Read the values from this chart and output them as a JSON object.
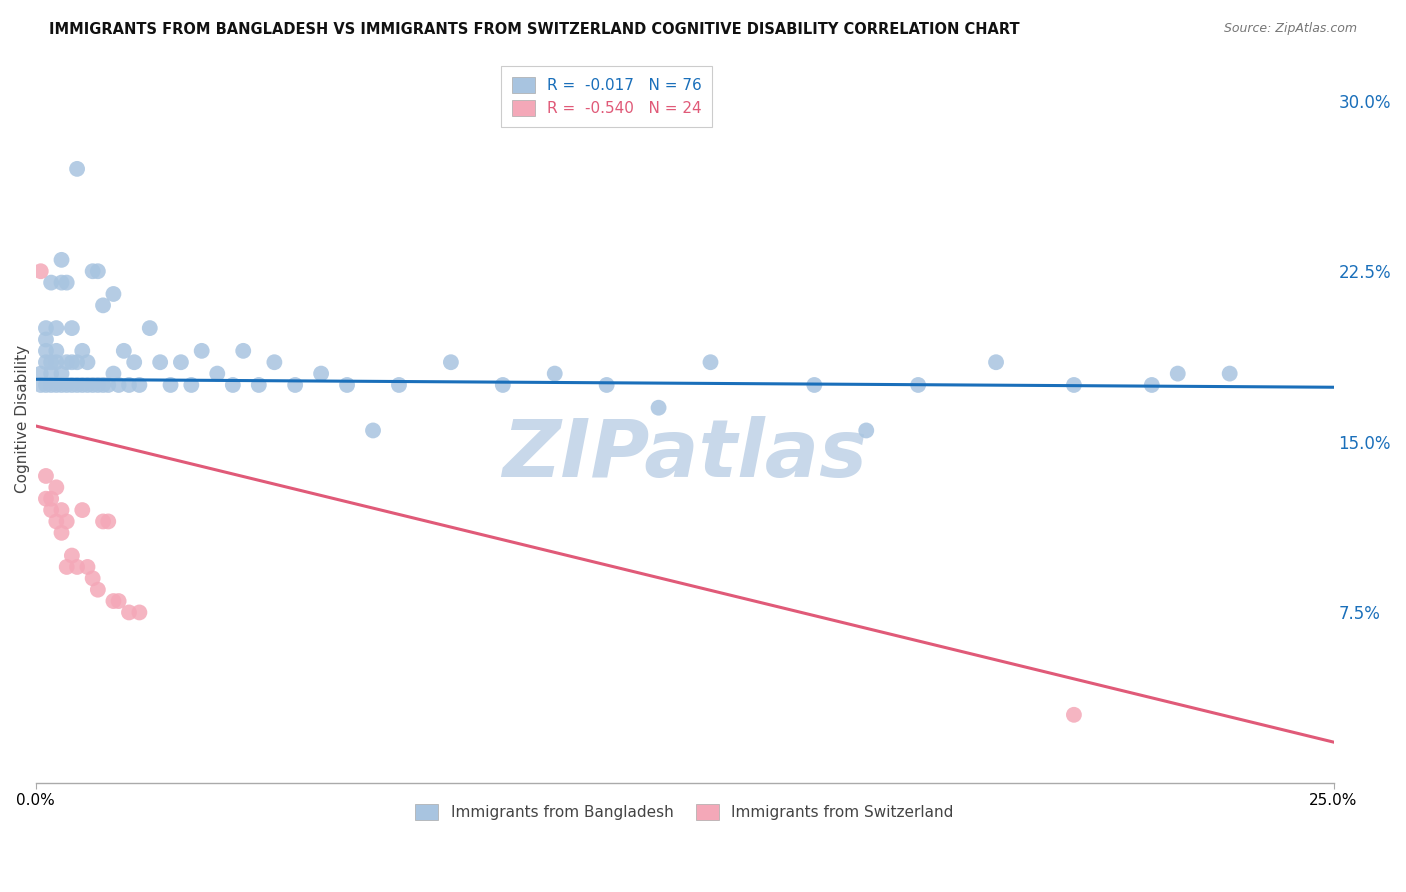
{
  "title": "IMMIGRANTS FROM BANGLADESH VS IMMIGRANTS FROM SWITZERLAND COGNITIVE DISABILITY CORRELATION CHART",
  "source": "Source: ZipAtlas.com",
  "ylabel": "Cognitive Disability",
  "yticks": [
    0.0,
    0.075,
    0.15,
    0.225,
    0.3
  ],
  "ytick_labels": [
    "",
    "7.5%",
    "15.0%",
    "22.5%",
    "30.0%"
  ],
  "xlim": [
    0.0,
    0.25
  ],
  "ylim": [
    0.0,
    0.32
  ],
  "legend_r1": "R =  -0.017",
  "legend_n1": "N = 76",
  "legend_r2": "R =  -0.540",
  "legend_n2": "N = 24",
  "label1": "Immigrants from Bangladesh",
  "label2": "Immigrants from Switzerland",
  "color1": "#a8c4e0",
  "color2": "#f4a8b8",
  "line_color1": "#1a6fba",
  "line_color2": "#e05a78",
  "watermark": "ZIPatlas",
  "watermark_color": "#c8d8ea",
  "bangladesh_x": [
    0.001,
    0.001,
    0.002,
    0.002,
    0.002,
    0.002,
    0.002,
    0.003,
    0.003,
    0.003,
    0.003,
    0.004,
    0.004,
    0.004,
    0.004,
    0.005,
    0.005,
    0.005,
    0.005,
    0.006,
    0.006,
    0.006,
    0.007,
    0.007,
    0.007,
    0.008,
    0.008,
    0.008,
    0.009,
    0.009,
    0.01,
    0.01,
    0.011,
    0.011,
    0.012,
    0.012,
    0.013,
    0.013,
    0.014,
    0.015,
    0.015,
    0.016,
    0.017,
    0.018,
    0.019,
    0.02,
    0.022,
    0.024,
    0.026,
    0.028,
    0.03,
    0.032,
    0.035,
    0.038,
    0.04,
    0.043,
    0.046,
    0.05,
    0.055,
    0.06,
    0.065,
    0.07,
    0.08,
    0.09,
    0.1,
    0.11,
    0.12,
    0.13,
    0.15,
    0.16,
    0.17,
    0.185,
    0.2,
    0.215,
    0.22,
    0.23
  ],
  "bangladesh_y": [
    0.175,
    0.18,
    0.175,
    0.185,
    0.19,
    0.195,
    0.2,
    0.175,
    0.18,
    0.185,
    0.22,
    0.175,
    0.185,
    0.19,
    0.2,
    0.175,
    0.18,
    0.22,
    0.23,
    0.175,
    0.185,
    0.22,
    0.175,
    0.185,
    0.2,
    0.175,
    0.185,
    0.27,
    0.175,
    0.19,
    0.175,
    0.185,
    0.175,
    0.225,
    0.175,
    0.225,
    0.175,
    0.21,
    0.175,
    0.18,
    0.215,
    0.175,
    0.19,
    0.175,
    0.185,
    0.175,
    0.2,
    0.185,
    0.175,
    0.185,
    0.175,
    0.19,
    0.18,
    0.175,
    0.19,
    0.175,
    0.185,
    0.175,
    0.18,
    0.175,
    0.155,
    0.175,
    0.185,
    0.175,
    0.18,
    0.175,
    0.165,
    0.185,
    0.175,
    0.155,
    0.175,
    0.185,
    0.175,
    0.175,
    0.18,
    0.18
  ],
  "switzerland_x": [
    0.001,
    0.002,
    0.002,
    0.003,
    0.003,
    0.004,
    0.004,
    0.005,
    0.005,
    0.006,
    0.006,
    0.007,
    0.008,
    0.009,
    0.01,
    0.011,
    0.012,
    0.013,
    0.014,
    0.015,
    0.016,
    0.018,
    0.02,
    0.2
  ],
  "switzerland_y": [
    0.225,
    0.135,
    0.125,
    0.125,
    0.12,
    0.13,
    0.115,
    0.12,
    0.11,
    0.115,
    0.095,
    0.1,
    0.095,
    0.12,
    0.095,
    0.09,
    0.085,
    0.115,
    0.115,
    0.08,
    0.08,
    0.075,
    0.075,
    0.03
  ],
  "line1_x": [
    0.0,
    0.25
  ],
  "line1_y": [
    0.1775,
    0.174
  ],
  "line2_x": [
    0.0,
    0.25
  ],
  "line2_y": [
    0.157,
    0.018
  ]
}
